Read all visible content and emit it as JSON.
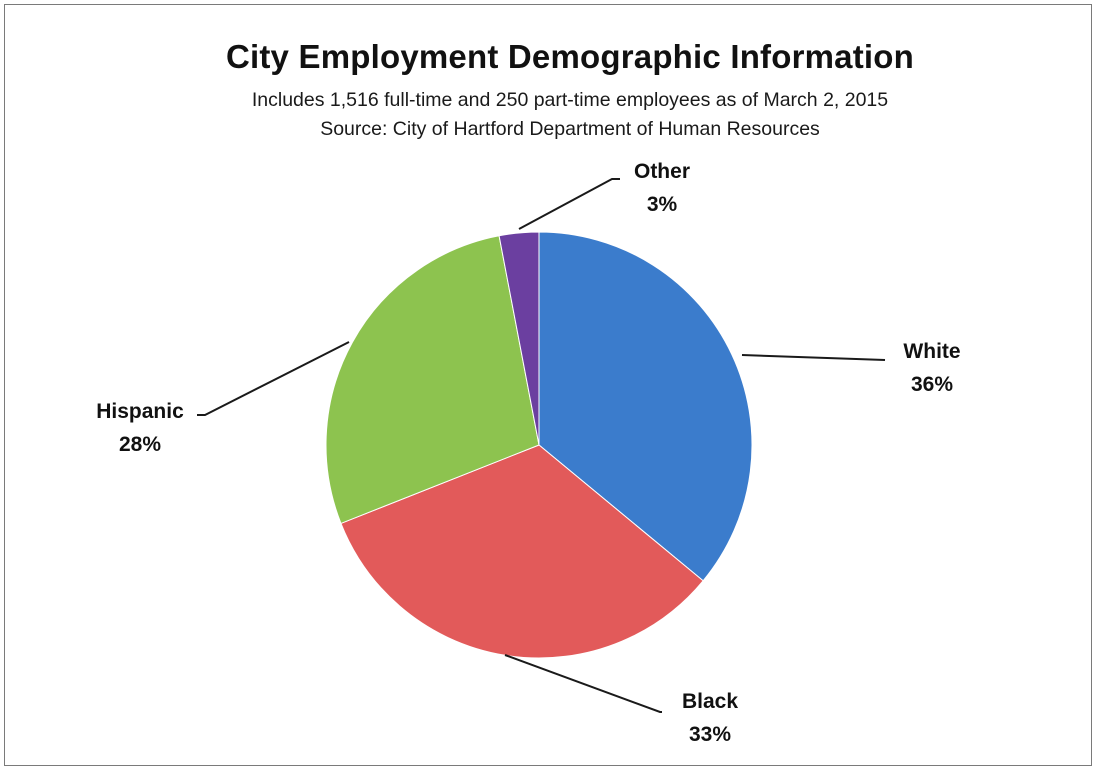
{
  "chart_data": {
    "type": "pie",
    "title": "City Employment Demographic Information",
    "subtitle": [
      "Includes 1,516 full-time and 250 part-time employees as of March 2, 2015",
      "Source:  City of Hartford Department of Human Resources"
    ],
    "slices": [
      {
        "label": "White",
        "value": 36,
        "display": "36%",
        "color": "#3b7ccc"
      },
      {
        "label": "Black",
        "value": 33,
        "display": "33%",
        "color": "#e25a5a"
      },
      {
        "label": "Hispanic",
        "value": 28,
        "display": "28%",
        "color": "#8dc34f"
      },
      {
        "label": "Other",
        "value": 3,
        "display": "3%",
        "color": "#6b3fa0"
      }
    ],
    "start_angle_deg": 0,
    "direction": "clockwise",
    "legend": "none",
    "data_labels": "outside-with-leader-lines"
  }
}
